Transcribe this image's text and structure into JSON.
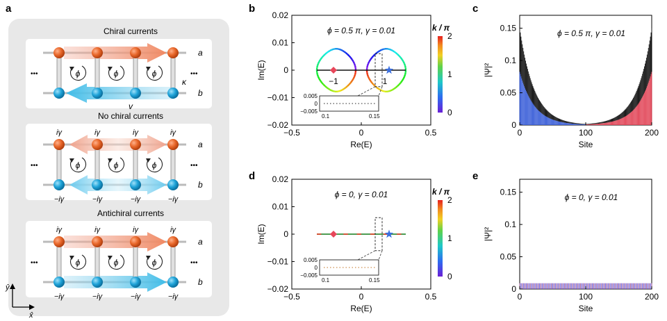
{
  "panel_labels": {
    "a": "a",
    "b": "b",
    "c": "c",
    "d": "d",
    "e": "e"
  },
  "ladders": [
    {
      "title": "Chiral currents",
      "top_labels": [],
      "bottom_labels": [],
      "top_row": "a",
      "bottom_row": "b",
      "extra_labels": {
        "kappa": "κ",
        "v": "v"
      }
    },
    {
      "title": "No chiral currents",
      "top_labels": [
        "iγ",
        "iγ",
        "iγ",
        "iγ"
      ],
      "bottom_labels": [
        "−iγ",
        "−iγ",
        "−iγ",
        "−iγ"
      ],
      "top_row": "a",
      "bottom_row": "b"
    },
    {
      "title": "Antichiral currents",
      "top_labels": [
        "iγ",
        "iγ",
        "iγ",
        "iγ"
      ],
      "bottom_labels": [
        "−iγ",
        "−iγ",
        "−iγ",
        "−iγ"
      ],
      "top_row": "a",
      "bottom_row": "b"
    }
  ],
  "phi_symbol": "ϕ",
  "dots": "•••",
  "axis_key": {
    "y": "ŷ",
    "x": "x̂"
  },
  "colors": {
    "orange": "#e8672a",
    "blue": "#1fa3d8",
    "panel_bg": "#e8e8e8",
    "card": "#ffffff",
    "red": "#e8465a",
    "star": "#3a6fe0"
  },
  "chart_data": [
    {
      "id": "b",
      "type": "line",
      "title": "ϕ = 0.5 π, γ = 0.01",
      "xlabel": "Re(E)",
      "ylabel": "Im(E)",
      "xlim": [
        -0.5,
        0.5
      ],
      "ylim": [
        -0.02,
        0.02
      ],
      "xticks": [
        "−0.5",
        "0",
        "0.5"
      ],
      "yticks": [
        "0.02",
        "0.01",
        "0",
        "−0.01",
        "−0.02"
      ],
      "colorbar": {
        "label": "k / π",
        "ticks": [
          "2",
          "1",
          "0"
        ]
      },
      "markers": {
        "left": "−1",
        "right": "1"
      },
      "inset": {
        "yticks": [
          "0.005",
          "0",
          "−0.005"
        ],
        "xticks": [
          "0.1",
          "0.15"
        ]
      }
    },
    {
      "id": "c",
      "type": "bar",
      "title": "ϕ = 0.5 π, γ = 0.01",
      "xlabel": "Site",
      "ylabel": "|Ψ|²",
      "xlim": [
        0,
        200
      ],
      "ylim": [
        0,
        0.17
      ],
      "xticks": [
        "0",
        "100",
        "200"
      ],
      "yticks": [
        "0.15",
        "0.1",
        "0.05",
        "0"
      ]
    },
    {
      "id": "d",
      "type": "line",
      "title": "ϕ = 0, γ = 0.01",
      "xlabel": "Re(E)",
      "ylabel": "Im(E)",
      "xlim": [
        -0.5,
        0.5
      ],
      "ylim": [
        -0.02,
        0.02
      ],
      "xticks": [
        "−0.5",
        "0",
        "0.5"
      ],
      "yticks": [
        "0.02",
        "0.01",
        "0",
        "−0.01",
        "−0.02"
      ],
      "colorbar": {
        "label": "k / π",
        "ticks": [
          "2",
          "1",
          "0"
        ]
      },
      "inset": {
        "yticks": [
          "0.005",
          "0",
          "−0.005"
        ],
        "xticks": [
          "0.1",
          "0.15"
        ]
      }
    },
    {
      "id": "e",
      "type": "bar",
      "title": "ϕ = 0, γ = 0.01",
      "xlabel": "Site",
      "ylabel": "|Ψ|²",
      "xlim": [
        0,
        200
      ],
      "ylim": [
        0,
        0.17
      ],
      "xticks": [
        "0",
        "100",
        "200"
      ],
      "yticks": [
        "0.15",
        "0.1",
        "0.05",
        "0"
      ]
    }
  ]
}
